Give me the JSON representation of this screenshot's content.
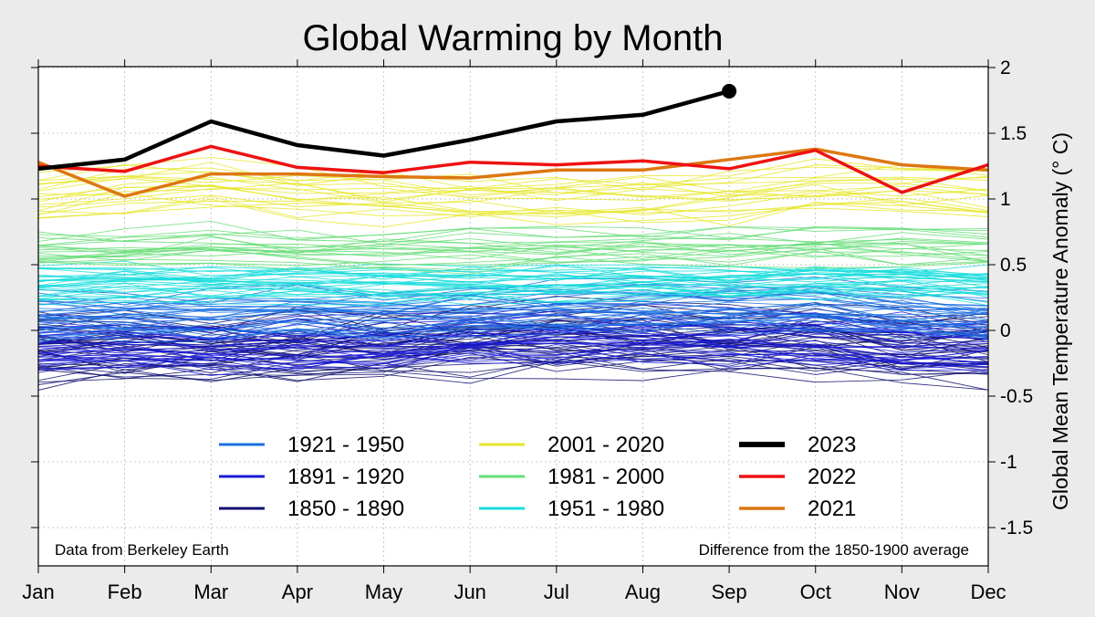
{
  "chart_data": {
    "type": "line",
    "title": "Global Warming by Month",
    "xlabel": "",
    "ylabel": "Global Mean Temperature Anomaly (° C)",
    "categories": [
      "Jan",
      "Feb",
      "Mar",
      "Apr",
      "May",
      "Jun",
      "Jul",
      "Aug",
      "Sep",
      "Oct",
      "Nov",
      "Dec"
    ],
    "y_ticks": [
      2,
      1.5,
      1,
      0.5,
      0,
      -0.5,
      -1,
      -1.5
    ],
    "ylim": [
      -1.85,
      2.05
    ],
    "grid": true,
    "note_left": "Data from Berkeley Earth",
    "note_right": "Difference from the 1850-1900 average",
    "highlight_series": [
      {
        "name": "2023",
        "color": "#000000",
        "width": 4.5,
        "marker_last": true,
        "values": [
          1.23,
          1.3,
          1.59,
          1.41,
          1.33,
          1.45,
          1.59,
          1.64,
          1.82
        ]
      },
      {
        "name": "2022",
        "color": "#ee1111",
        "width": 3.5,
        "values": [
          1.25,
          1.21,
          1.4,
          1.24,
          1.2,
          1.28,
          1.26,
          1.29,
          1.23,
          1.37,
          1.05,
          1.26
        ]
      },
      {
        "name": "2021",
        "color": "#dd7711",
        "width": 3.5,
        "values": [
          1.28,
          1.02,
          1.19,
          1.19,
          1.17,
          1.16,
          1.22,
          1.22,
          1.3,
          1.38,
          1.26,
          1.22
        ]
      }
    ],
    "period_groups": [
      {
        "name": "1850 - 1890",
        "color": "#101070",
        "count": 41,
        "mean": [
          -0.14,
          -0.16,
          -0.16,
          -0.15,
          -0.13,
          -0.1,
          -0.08,
          -0.08,
          -0.1,
          -0.09,
          -0.14,
          -0.15
        ],
        "spread": 0.24
      },
      {
        "name": "1891 - 1920",
        "color": "#1a1ad6",
        "count": 30,
        "mean": [
          -0.12,
          -0.13,
          -0.14,
          -0.12,
          -0.1,
          -0.07,
          -0.05,
          -0.05,
          -0.07,
          -0.06,
          -0.11,
          -0.12
        ],
        "spread": 0.18
      },
      {
        "name": "1921 - 1950",
        "color": "#1a6fe0",
        "count": 30,
        "mean": [
          0.12,
          0.11,
          0.13,
          0.14,
          0.14,
          0.16,
          0.18,
          0.19,
          0.19,
          0.2,
          0.15,
          0.13
        ],
        "spread": 0.16
      },
      {
        "name": "1951 - 1980",
        "color": "#16dcdc",
        "count": 30,
        "mean": [
          0.33,
          0.35,
          0.34,
          0.34,
          0.34,
          0.34,
          0.35,
          0.35,
          0.34,
          0.36,
          0.36,
          0.34
        ],
        "spread": 0.13
      },
      {
        "name": "1981 - 2000",
        "color": "#66dd77",
        "count": 20,
        "mean": [
          0.62,
          0.62,
          0.66,
          0.63,
          0.62,
          0.62,
          0.64,
          0.64,
          0.64,
          0.66,
          0.65,
          0.63
        ],
        "spread": 0.14
      },
      {
        "name": "2001 - 2020",
        "color": "#e6e62a",
        "count": 20,
        "mean": [
          1.02,
          1.06,
          1.09,
          1.05,
          1.01,
          1.0,
          1.0,
          1.02,
          1.02,
          1.08,
          1.06,
          1.04
        ],
        "spread": 0.17
      }
    ],
    "legend": [
      {
        "label": "1921 - 1950",
        "color": "#1a6fe0",
        "width": 3
      },
      {
        "label": "1891 - 1920",
        "color": "#1a1ad6",
        "width": 3
      },
      {
        "label": "1850 - 1890",
        "color": "#101070",
        "width": 3
      },
      {
        "label": "2001 - 2020",
        "color": "#e6e62a",
        "width": 3
      },
      {
        "label": "1981 - 2000",
        "color": "#66dd77",
        "width": 3
      },
      {
        "label": "1951 - 1980",
        "color": "#16dcdc",
        "width": 3
      },
      {
        "label": "2023",
        "color": "#000000",
        "width": 6
      },
      {
        "label": "2022",
        "color": "#ee1111",
        "width": 3.5
      },
      {
        "label": "2021",
        "color": "#dd7711",
        "width": 3.5
      }
    ]
  }
}
